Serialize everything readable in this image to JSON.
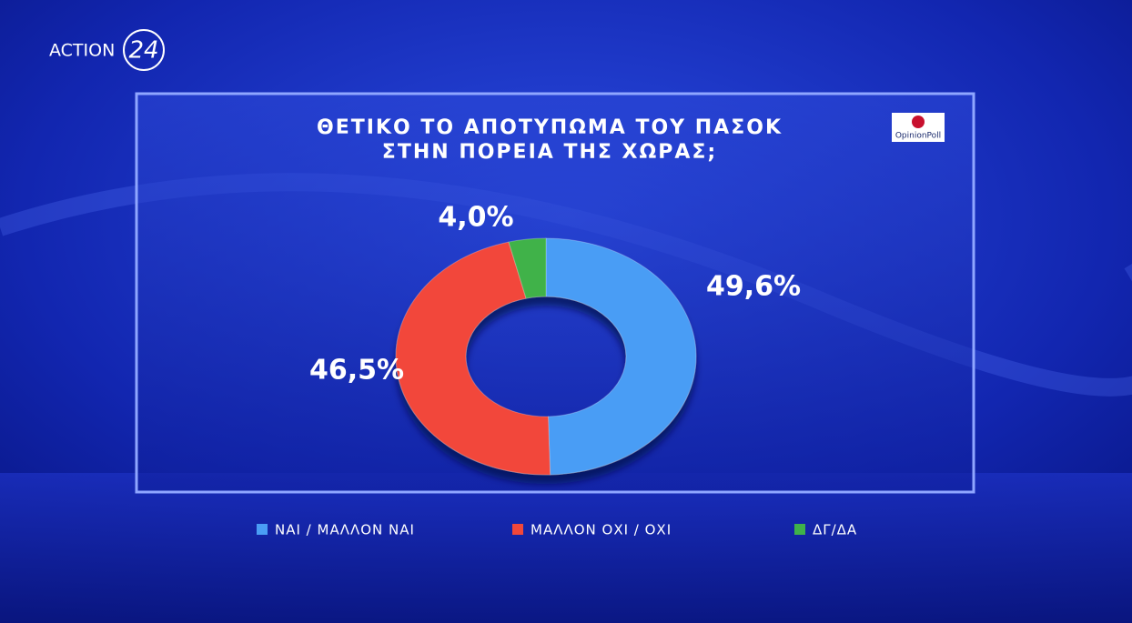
{
  "chart_data": {
    "type": "donut",
    "title": [
      "ΘΕΤΙΚΟ ΤΟ ΑΠΟΤΥΠΩΜΑ ΤΟΥ ΠΑΣΟΚ",
      "ΣΤΗΝ ΠΟΡΕΙΑ ΤΗΣ ΧΩΡΑΣ;"
    ],
    "channel_logo": [
      "ACTION",
      "24"
    ],
    "source": "OpinionPoll",
    "categories": [
      "ΝΑΙ / ΜΑΛΛΟΝ ΝΑΙ",
      "ΜΑΛΛΟΝ ΟΧΙ / ΟΧΙ",
      "ΔΓ/ΔΑ"
    ],
    "values": [
      49.6,
      46.5,
      4.0
    ],
    "value_labels": [
      "49,6%",
      "46,5%",
      "4,0%"
    ],
    "colors": [
      "#4a9df5",
      "#f2473a",
      "#3fb24a"
    ],
    "legend": "bottom"
  }
}
